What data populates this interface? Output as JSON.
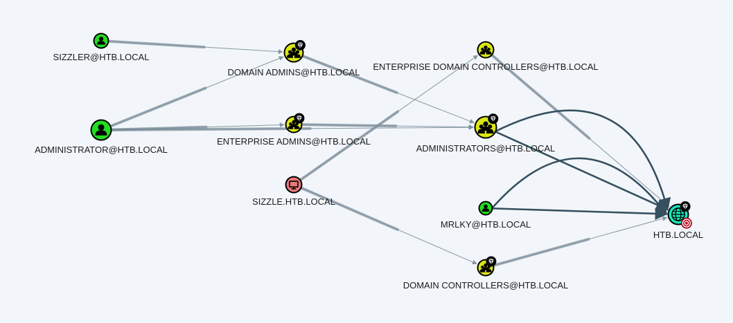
{
  "colors": {
    "background": "#f2f6fa",
    "user": "#22dd22",
    "group": "#dbe617",
    "computer": "#e9797a",
    "domain": "#17e6b9",
    "edge_light": "#7a8c99",
    "edge_dark": "#36505f",
    "target": "#b3071e"
  },
  "nodes": [
    {
      "id": "sizzler",
      "type": "user",
      "icon": "user-icon",
      "label": "SIZZLER@HTB.LOCAL",
      "badge": ""
    },
    {
      "id": "administrator",
      "type": "user",
      "icon": "user-icon",
      "label": "ADMINISTRATOR@HTB.LOCAL",
      "badge": ""
    },
    {
      "id": "domain_admins",
      "type": "group",
      "icon": "group-icon",
      "label": "DOMAIN ADMINS@HTB.LOCAL",
      "badge": "high-value-gem-icon"
    },
    {
      "id": "enterprise_admins",
      "type": "group",
      "icon": "group-icon",
      "label": "ENTERPRISE ADMINS@HTB.LOCAL",
      "badge": "high-value-gem-icon"
    },
    {
      "id": "sizzle",
      "type": "computer",
      "icon": "computer-icon",
      "label": "SIZZLE.HTB.LOCAL",
      "badge": ""
    },
    {
      "id": "edc",
      "type": "group",
      "icon": "group-icon",
      "label": "ENTERPRISE DOMAIN CONTROLLERS@HTB.LOCAL",
      "badge": ""
    },
    {
      "id": "administrators",
      "type": "group",
      "icon": "group-icon",
      "label": "ADMINISTRATORS@HTB.LOCAL",
      "badge": "high-value-gem-icon"
    },
    {
      "id": "mrlky",
      "type": "user",
      "icon": "user-icon",
      "label": "MRLKY@HTB.LOCAL",
      "badge": ""
    },
    {
      "id": "dc",
      "type": "group",
      "icon": "group-icon",
      "label": "DOMAIN CONTROLLERS@HTB.LOCAL",
      "badge": "high-value-gem-icon"
    },
    {
      "id": "htb",
      "type": "domain",
      "icon": "domain-globe-icon",
      "label": "HTB.LOCAL",
      "badge": "high-value-gem-icon",
      "target": "target-icon"
    }
  ],
  "edges": [
    {
      "from": "sizzler",
      "to": "domain_admins",
      "style": "member"
    },
    {
      "from": "administrator",
      "to": "domain_admins",
      "style": "member"
    },
    {
      "from": "administrator",
      "to": "enterprise_admins",
      "style": "member"
    },
    {
      "from": "administrator",
      "to": "administrators",
      "style": "member"
    },
    {
      "from": "domain_admins",
      "to": "administrators",
      "style": "member"
    },
    {
      "from": "enterprise_admins",
      "to": "administrators",
      "style": "member"
    },
    {
      "from": "sizzle",
      "to": "edc",
      "style": "member"
    },
    {
      "from": "sizzle",
      "to": "dc",
      "style": "member"
    },
    {
      "from": "edc",
      "to": "htb",
      "style": "member"
    },
    {
      "from": "dc",
      "to": "htb",
      "style": "member"
    },
    {
      "from": "administrators",
      "to": "htb",
      "style": "rights",
      "curve": 0
    },
    {
      "from": "administrators",
      "to": "htb",
      "style": "rights",
      "curve": 1
    },
    {
      "from": "mrlky",
      "to": "htb",
      "style": "rights",
      "curve": 0
    },
    {
      "from": "mrlky",
      "to": "htb",
      "style": "rights",
      "curve": 1
    }
  ]
}
